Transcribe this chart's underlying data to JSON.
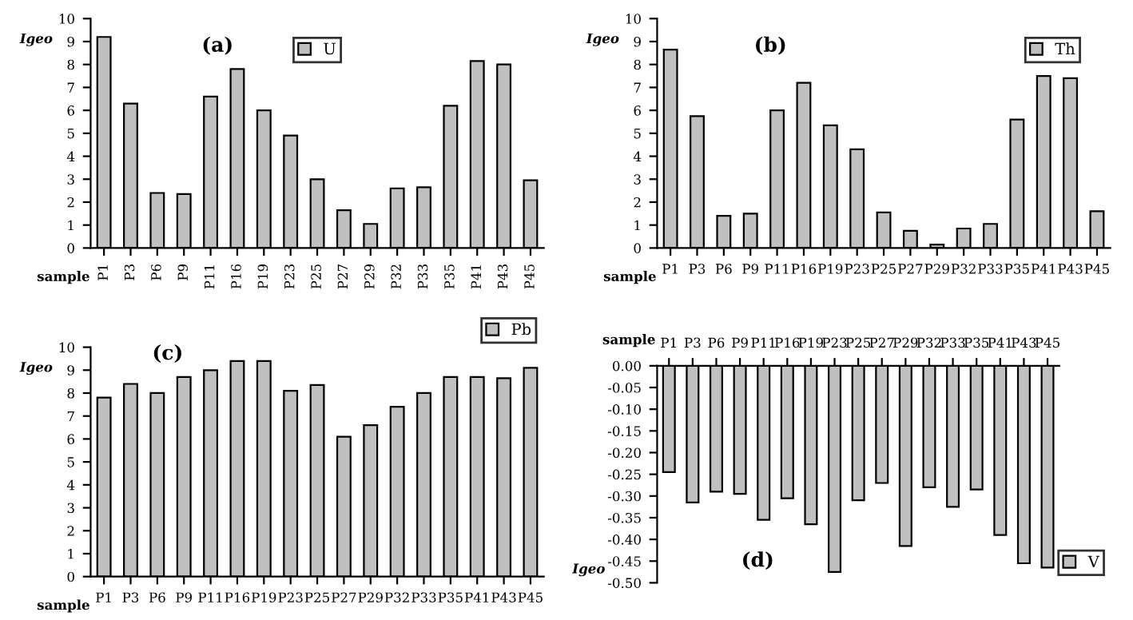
{
  "chart_data": [
    {
      "type": "bar",
      "annotations": [
        "(a)"
      ],
      "xlabel": "sample",
      "ylabel": "Igeo",
      "legend": "top",
      "categories": [
        "P1",
        "P3",
        "P6",
        "P9",
        "P11",
        "P16",
        "P19",
        "P23",
        "P25",
        "P27",
        "P29",
        "P32",
        "P33",
        "P35",
        "P41",
        "P43",
        "P45"
      ],
      "series": [
        {
          "name": "U",
          "color": "#c0c0c0",
          "values": [
            9.2,
            6.3,
            2.4,
            2.35,
            6.6,
            7.8,
            6.0,
            4.9,
            3.0,
            1.65,
            1.05,
            2.6,
            2.65,
            6.2,
            8.15,
            8.0,
            2.95
          ]
        }
      ],
      "ylim": [
        0,
        10
      ],
      "yticks": [
        0,
        1,
        2,
        3,
        4,
        5,
        6,
        7,
        8,
        9,
        10
      ],
      "grid": false
    },
    {
      "type": "bar",
      "annotations": [
        "(b)"
      ],
      "xlabel": "sample",
      "ylabel": "Igeo",
      "legend": "top right",
      "categories": [
        "P1",
        "P3",
        "P6",
        "P9",
        "P11",
        "P16",
        "P19",
        "P23",
        "P25",
        "P27",
        "P29",
        "P32",
        "P33",
        "P35",
        "P41",
        "P43",
        "P45"
      ],
      "series": [
        {
          "name": "Th",
          "color": "#c0c0c0",
          "values": [
            8.65,
            5.75,
            1.4,
            1.5,
            6.0,
            7.2,
            5.35,
            4.3,
            1.55,
            0.75,
            0.15,
            0.85,
            1.05,
            5.6,
            7.5,
            7.4,
            1.6
          ]
        }
      ],
      "ylim": [
        0,
        10
      ],
      "yticks": [
        0,
        1,
        2,
        3,
        4,
        5,
        6,
        7,
        8,
        9,
        10
      ],
      "grid": false
    },
    {
      "type": "bar",
      "annotations": [
        "(c)"
      ],
      "xlabel": "sample",
      "ylabel": "Igeo",
      "legend": "top right",
      "categories": [
        "P1",
        "P3",
        "P6",
        "P9",
        "P11",
        "P16",
        "P19",
        "P23",
        "P25",
        "P27",
        "P29",
        "P32",
        "P33",
        "P35",
        "P41",
        "P43",
        "P45"
      ],
      "series": [
        {
          "name": "Pb",
          "color": "#c0c0c0",
          "values": [
            7.8,
            8.4,
            8.0,
            8.7,
            9.0,
            9.4,
            9.4,
            8.1,
            8.35,
            6.1,
            6.6,
            7.4,
            8.0,
            8.7,
            8.7,
            8.65,
            9.1
          ]
        }
      ],
      "ylim": [
        0,
        10
      ],
      "yticks": [
        0,
        1,
        2,
        3,
        4,
        5,
        6,
        7,
        8,
        9,
        10
      ],
      "grid": false
    },
    {
      "type": "bar",
      "annotations": [
        "(d)"
      ],
      "xlabel": "sample",
      "ylabel": "Igeo",
      "legend": "bottom right",
      "categories": [
        "P1",
        "P3",
        "P6",
        "P9",
        "P11",
        "P16",
        "P19",
        "P23",
        "P25",
        "P27",
        "P29",
        "P32",
        "P33",
        "P35",
        "P41",
        "P43",
        "P45"
      ],
      "series": [
        {
          "name": "V",
          "color": "#c0c0c0",
          "values": [
            -0.245,
            -0.315,
            -0.29,
            -0.295,
            -0.355,
            -0.305,
            -0.365,
            -0.475,
            -0.31,
            -0.27,
            -0.415,
            -0.28,
            -0.325,
            -0.285,
            -0.39,
            -0.455,
            -0.465
          ]
        }
      ],
      "ylim": [
        -0.5,
        0
      ],
      "yticks": [
        {
          "value": 0,
          "label": "0.00"
        },
        {
          "value": -0.05,
          "label": "-0.05"
        },
        {
          "value": -0.1,
          "label": "-0.10"
        },
        {
          "value": -0.15,
          "label": "-0.15"
        },
        {
          "value": -0.2,
          "label": "-0.20"
        },
        {
          "value": -0.25,
          "label": "-0.25"
        },
        {
          "value": -0.3,
          "label": "-0.30"
        },
        {
          "value": -0.35,
          "label": "-0.35"
        },
        {
          "value": -0.4,
          "label": "-0.40"
        },
        {
          "value": -0.45,
          "label": "-0.45"
        },
        {
          "value": -0.5,
          "label": "-0.50"
        }
      ],
      "grid": false
    }
  ]
}
